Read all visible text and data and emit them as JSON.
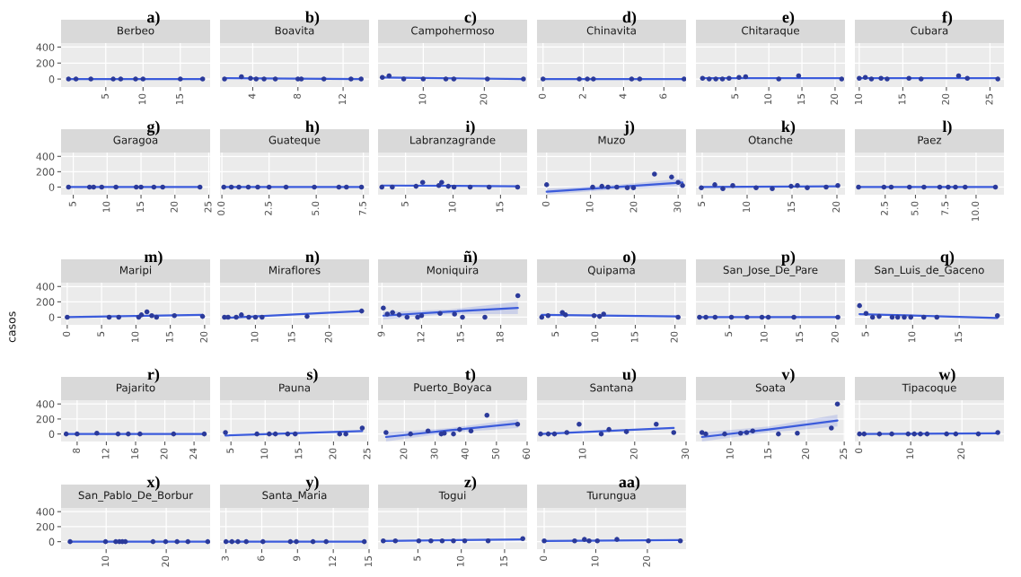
{
  "chart_data": [
    {
      "type": "scatter",
      "title": "Berbeo",
      "annotations": [
        "a)"
      ],
      "xlim": [
        -1,
        19
      ],
      "xticks": [
        5,
        10,
        15
      ],
      "ylim": [
        -100,
        450
      ],
      "yticks": [
        0,
        200,
        400
      ],
      "grid": true,
      "series": [
        {
          "marker": "circle",
          "color": "#2b3a9a",
          "x": [
            0,
            1,
            3,
            6,
            7,
            9,
            10,
            15,
            18
          ],
          "values": [
            0,
            0,
            0,
            0,
            0,
            0,
            0,
            0,
            0
          ]
        },
        {
          "type": "line",
          "color": "#3b5bdb",
          "x": [
            0,
            18
          ],
          "values": [
            0,
            0
          ]
        }
      ]
    },
    {
      "type": "scatter",
      "title": "Boavita",
      "annotations": [
        "b)"
      ],
      "xlim": [
        1.1,
        14.3
      ],
      "xticks": [
        4,
        8,
        12
      ],
      "ylim": [
        -100,
        450
      ],
      "yticks": [
        0,
        200,
        400
      ],
      "grid": true,
      "tick_labels": "x",
      "series": [
        {
          "marker": "circle",
          "color": "#2b3a9a",
          "x": [
            1.5,
            3,
            3.8,
            4.3,
            5,
            6,
            8,
            8.3,
            10.3,
            12.7,
            13.6
          ],
          "values": [
            0,
            30,
            10,
            0,
            0,
            0,
            0,
            0,
            0,
            0,
            0
          ]
        },
        {
          "type": "line",
          "color": "#3b5bdb",
          "x": [
            1.5,
            13.6
          ],
          "values": [
            10,
            0
          ]
        }
      ]
    },
    {
      "type": "scatter",
      "title": "Campohermoso",
      "annotations": [
        "c)"
      ],
      "xlim": [
        2.6,
        27
      ],
      "xticks": [
        10,
        20
      ],
      "ylim": [
        -100,
        450
      ],
      "yticks": [
        0,
        200,
        400
      ],
      "grid": true,
      "tick_labels": "x",
      "series": [
        {
          "marker": "circle",
          "color": "#2b3a9a",
          "x": [
            3.3,
            4.4,
            6.8,
            10,
            13.7,
            15,
            20.5,
            26.4
          ],
          "values": [
            20,
            40,
            0,
            0,
            0,
            0,
            0,
            0
          ]
        },
        {
          "type": "line",
          "color": "#3b5bdb",
          "x": [
            3.3,
            26.4
          ],
          "values": [
            20,
            0
          ]
        }
      ]
    },
    {
      "type": "scatter",
      "title": "Chinavita",
      "annotations": [
        "d)"
      ],
      "xlim": [
        -0.3,
        7.1
      ],
      "xticks": [
        0,
        2,
        4,
        6
      ],
      "ylim": [
        -100,
        450
      ],
      "yticks": [
        0,
        200,
        400
      ],
      "grid": true,
      "tick_labels": "x",
      "series": [
        {
          "marker": "circle",
          "color": "#2b3a9a",
          "x": [
            0,
            1.8,
            2.2,
            2.5,
            4.4,
            4.8,
            7
          ],
          "values": [
            0,
            0,
            0,
            0,
            0,
            0,
            0
          ]
        },
        {
          "type": "line",
          "color": "#3b5bdb",
          "x": [
            0,
            7
          ],
          "values": [
            0,
            0
          ]
        }
      ]
    },
    {
      "type": "scatter",
      "title": "Chitaraque",
      "annotations": [
        "e)"
      ],
      "xlim": [
        -1,
        21.5
      ],
      "xticks": [
        5,
        10,
        15,
        20
      ],
      "ylim": [
        -100,
        450
      ],
      "yticks": [
        0,
        200,
        400
      ],
      "grid": true,
      "tick_labels": "x",
      "series": [
        {
          "marker": "circle",
          "color": "#2b3a9a",
          "x": [
            0,
            1,
            2,
            3,
            4,
            5.5,
            6.5,
            11.5,
            14.5,
            21
          ],
          "values": [
            10,
            0,
            0,
            0,
            10,
            20,
            30,
            0,
            40,
            0
          ]
        },
        {
          "type": "line",
          "color": "#3b5bdb",
          "x": [
            0,
            21
          ],
          "values": [
            10,
            10
          ]
        }
      ]
    },
    {
      "type": "scatter",
      "title": "Cubara",
      "annotations": [
        "f)"
      ],
      "xlim": [
        9.5,
        26.6
      ],
      "xticks": [
        10,
        15,
        20,
        25
      ],
      "ylim": [
        -100,
        450
      ],
      "yticks": [
        0,
        200,
        400
      ],
      "grid": true,
      "tick_labels": "x",
      "series": [
        {
          "marker": "circle",
          "color": "#2b3a9a",
          "x": [
            10,
            10.7,
            11.4,
            12.5,
            13.2,
            15.7,
            17.1,
            21.4,
            22.4,
            25.9
          ],
          "values": [
            10,
            20,
            0,
            10,
            0,
            10,
            0,
            40,
            10,
            0
          ]
        },
        {
          "type": "line",
          "color": "#3b5bdb",
          "x": [
            10,
            25.9
          ],
          "values": [
            10,
            10
          ]
        }
      ]
    },
    {
      "type": "scatter",
      "title": "Garagoa",
      "annotations": [
        "g)"
      ],
      "xlim": [
        3.2,
        25.2
      ],
      "xticks": [
        5,
        10,
        15,
        20,
        25
      ],
      "ylim": [
        -100,
        450
      ],
      "yticks": [
        0,
        200,
        400
      ],
      "grid": true,
      "series": [
        {
          "marker": "circle",
          "color": "#2b3a9a",
          "x": [
            4.3,
            7.4,
            8,
            9.2,
            11.3,
            14.3,
            15,
            16.9,
            18.2,
            23.7
          ],
          "values": [
            0,
            0,
            0,
            0,
            0,
            0,
            0,
            0,
            0,
            0
          ]
        },
        {
          "type": "line",
          "color": "#3b5bdb",
          "x": [
            4.3,
            23.7
          ],
          "values": [
            0,
            0
          ]
        }
      ]
    },
    {
      "type": "scatter",
      "title": "Guateque",
      "annotations": [
        "h)"
      ],
      "xlim": [
        -0.1,
        7.8
      ],
      "xticks": [
        {
          "value": 0,
          "label": "0.0"
        },
        {
          "value": 2.5,
          "label": "2.5"
        },
        {
          "value": 5,
          "label": "5.0"
        },
        {
          "value": 7.5,
          "label": "7.5"
        }
      ],
      "ylim": [
        -100,
        450
      ],
      "yticks": [
        0,
        200,
        400
      ],
      "grid": true,
      "tick_labels": "x",
      "series": [
        {
          "marker": "circle",
          "color": "#2b3a9a",
          "x": [
            0.1,
            0.5,
            0.9,
            1.4,
            1.9,
            2.5,
            3.4,
            4.9,
            6.2,
            6.6,
            7.4
          ],
          "values": [
            0,
            0,
            0,
            0,
            0,
            0,
            0,
            0,
            0,
            0,
            0
          ]
        },
        {
          "type": "line",
          "color": "#3b5bdb",
          "x": [
            0.1,
            7.4
          ],
          "values": [
            0,
            0
          ]
        }
      ]
    },
    {
      "type": "scatter",
      "title": "Labranzagrande",
      "annotations": [
        "i)"
      ],
      "xlim": [
        2.1,
        17.8
      ],
      "xticks": [
        5,
        10,
        15
      ],
      "ylim": [
        -100,
        450
      ],
      "yticks": [
        0,
        200,
        400
      ],
      "grid": true,
      "tick_labels": "x",
      "series": [
        {
          "marker": "circle",
          "color": "#2b3a9a",
          "x": [
            2.5,
            3.6,
            6.1,
            6.8,
            8.5,
            8.8,
            9.5,
            10.1,
            11.8,
            13.8,
            16.8
          ],
          "values": [
            0,
            0,
            10,
            60,
            20,
            60,
            10,
            0,
            0,
            0,
            0
          ]
        },
        {
          "type": "line",
          "color": "#3b5bdb",
          "x": [
            2.5,
            16.8
          ],
          "values": [
            20,
            10
          ]
        }
      ]
    },
    {
      "type": "scatter",
      "title": "Muzo",
      "annotations": [
        "j)"
      ],
      "xlim": [
        -2.2,
        31.8
      ],
      "xticks": [
        0,
        10,
        20,
        30
      ],
      "ylim": [
        -100,
        450
      ],
      "yticks": [
        0,
        200,
        400
      ],
      "grid": true,
      "tick_labels": "x",
      "series": [
        {
          "marker": "circle",
          "color": "#2b3a9a",
          "x": [
            0,
            10.5,
            12.6,
            14,
            16,
            18.4,
            19.8,
            24.6,
            28.5,
            30,
            31
          ],
          "values": [
            30,
            0,
            10,
            0,
            0,
            -10,
            -10,
            170,
            130,
            60,
            20
          ]
        },
        {
          "type": "line",
          "color": "#3b5bdb",
          "x": [
            0,
            16,
            31
          ],
          "values": [
            -60,
            0,
            60
          ],
          "lower": [
            -100,
            -30,
            10
          ],
          "upper": [
            -20,
            30,
            110
          ]
        }
      ]
    },
    {
      "type": "scatter",
      "title": "Otanche",
      "annotations": [
        "k)"
      ],
      "xlim": [
        4.3,
        20.9
      ],
      "xticks": [
        5,
        10,
        15,
        20
      ],
      "ylim": [
        -100,
        450
      ],
      "yticks": [
        0,
        200,
        400
      ],
      "grid": true,
      "tick_labels": "x",
      "series": [
        {
          "marker": "circle",
          "color": "#2b3a9a",
          "x": [
            4.9,
            6.4,
            7.3,
            8.4,
            11,
            12.8,
            14.9,
            15.6,
            16.7,
            18.8,
            20.1
          ],
          "values": [
            -10,
            30,
            -20,
            20,
            -10,
            -20,
            10,
            20,
            -10,
            0,
            20
          ]
        },
        {
          "type": "line",
          "color": "#3b5bdb",
          "x": [
            4.9,
            20.1
          ],
          "values": [
            0,
            10
          ]
        }
      ]
    },
    {
      "type": "scatter",
      "title": "Paez",
      "annotations": [
        "l)"
      ],
      "xlim": [
        0,
        12.3
      ],
      "xticks": [
        {
          "value": 2.5,
          "label": "2.5"
        },
        {
          "value": 5,
          "label": "5.0"
        },
        {
          "value": 7.5,
          "label": "7.5"
        },
        {
          "value": 10,
          "label": "10.0"
        }
      ],
      "ylim": [
        -100,
        450
      ],
      "yticks": [
        0,
        200,
        400
      ],
      "grid": true,
      "tick_labels": "x",
      "series": [
        {
          "marker": "circle",
          "color": "#2b3a9a",
          "x": [
            0.3,
            2.4,
            3,
            4.5,
            5.7,
            7,
            7.7,
            8.3,
            9.1,
            11.6
          ],
          "values": [
            0,
            0,
            0,
            0,
            0,
            0,
            0,
            0,
            0,
            0
          ]
        },
        {
          "type": "line",
          "color": "#3b5bdb",
          "x": [
            0.3,
            11.6
          ],
          "values": [
            0,
            0
          ]
        }
      ]
    },
    {
      "type": "scatter",
      "title": "Maripi",
      "annotations": [
        "m)"
      ],
      "ylabel": "casos",
      "xlim": [
        -0.9,
        20.8
      ],
      "xticks": [
        0,
        5,
        10,
        15,
        20
      ],
      "ylim": [
        -100,
        450
      ],
      "yticks": [
        0,
        200,
        400
      ],
      "grid": true,
      "series": [
        {
          "marker": "circle",
          "color": "#2b3a9a",
          "x": [
            0,
            6.1,
            7.5,
            10.4,
            10.8,
            11.6,
            12.3,
            13,
            15.6,
            19.7
          ],
          "values": [
            0,
            0,
            0,
            0,
            30,
            70,
            20,
            0,
            20,
            10
          ]
        },
        {
          "type": "line",
          "color": "#3b5bdb",
          "x": [
            0,
            19.7
          ],
          "values": [
            0,
            30
          ]
        }
      ]
    },
    {
      "type": "scatter",
      "title": "Miraflores",
      "annotations": [
        "n)"
      ],
      "xlim": [
        5.2,
        25.4
      ],
      "xticks": [
        10,
        15,
        20
      ],
      "ylim": [
        -100,
        450
      ],
      "yticks": [
        0,
        200,
        400
      ],
      "grid": true,
      "tick_labels": "x",
      "series": [
        {
          "marker": "circle",
          "color": "#2b3a9a",
          "x": [
            5.8,
            6.3,
            7.4,
            8.1,
            9.1,
            10,
            10.9,
            17,
            24.4
          ],
          "values": [
            0,
            0,
            0,
            30,
            0,
            0,
            0,
            10,
            80
          ]
        },
        {
          "type": "line",
          "color": "#3b5bdb",
          "x": [
            5.8,
            24.4
          ],
          "values": [
            -10,
            80
          ]
        }
      ]
    },
    {
      "type": "scatter",
      "title": "Moniquira",
      "annotations": [
        "ñ)"
      ],
      "xlim": [
        8.7,
        20
      ],
      "xticks": [
        9,
        12,
        15,
        18
      ],
      "ylim": [
        -100,
        450
      ],
      "yticks": [
        0,
        200,
        400
      ],
      "grid": true,
      "tick_labels": "x",
      "series": [
        {
          "marker": "circle",
          "color": "#2b3a9a",
          "x": [
            9.1,
            9.4,
            9.8,
            10.3,
            10.9,
            11.7,
            12,
            13.4,
            14.5,
            15.1,
            16.8,
            19.3
          ],
          "values": [
            120,
            40,
            60,
            30,
            0,
            0,
            20,
            50,
            40,
            0,
            0,
            280
          ]
        },
        {
          "type": "line",
          "color": "#3b5bdb",
          "x": [
            9.1,
            14,
            19.3
          ],
          "values": [
            20,
            70,
            120
          ],
          "lower": [
            -30,
            40,
            40
          ],
          "upper": [
            70,
            100,
            200
          ]
        }
      ]
    },
    {
      "type": "scatter",
      "title": "Quipama",
      "annotations": [
        "o)"
      ],
      "xlim": [
        2.6,
        21.4
      ],
      "xticks": [
        5,
        10,
        15,
        20
      ],
      "ylim": [
        -100,
        450
      ],
      "yticks": [
        0,
        200,
        400
      ],
      "grid": true,
      "tick_labels": "x",
      "series": [
        {
          "marker": "circle",
          "color": "#2b3a9a",
          "x": [
            3.2,
            4,
            5.8,
            6.2,
            9.8,
            10.5,
            11,
            20.4
          ],
          "values": [
            0,
            20,
            60,
            30,
            20,
            10,
            40,
            0
          ]
        },
        {
          "type": "line",
          "color": "#3b5bdb",
          "x": [
            3.2,
            20.4
          ],
          "values": [
            30,
            10
          ]
        }
      ]
    },
    {
      "type": "scatter",
      "title": "San_Jose_De_Pare",
      "annotations": [
        "p)"
      ],
      "xlim": [
        0.3,
        21.3
      ],
      "xticks": [
        5,
        10,
        15,
        20
      ],
      "ylim": [
        -100,
        450
      ],
      "yticks": [
        0,
        200,
        400
      ],
      "grid": true,
      "tick_labels": "x",
      "series": [
        {
          "marker": "circle",
          "color": "#2b3a9a",
          "x": [
            0.8,
            1.7,
            3,
            5.3,
            7.5,
            9.6,
            10.5,
            14.1,
            20.3
          ],
          "values": [
            0,
            0,
            0,
            0,
            0,
            0,
            0,
            0,
            0
          ]
        },
        {
          "type": "line",
          "color": "#3b5bdb",
          "x": [
            0.8,
            20.3
          ],
          "values": [
            0,
            0
          ]
        }
      ]
    },
    {
      "type": "scatter",
      "title": "San_Luis_de_Gaceno",
      "annotations": [
        "q)"
      ],
      "xlim": [
        3.8,
        19.8
      ],
      "xticks": [
        5,
        10,
        15
      ],
      "ylim": [
        -100,
        450
      ],
      "yticks": [
        0,
        200,
        400
      ],
      "grid": true,
      "tick_labels": "x",
      "series": [
        {
          "marker": "circle",
          "color": "#2b3a9a",
          "x": [
            4.3,
            5,
            5.7,
            6.4,
            7.8,
            8.4,
            9.1,
            9.8,
            11.2,
            12.6,
            19.1
          ],
          "values": [
            150,
            50,
            0,
            10,
            0,
            0,
            0,
            0,
            0,
            0,
            20
          ]
        },
        {
          "type": "line",
          "color": "#3b5bdb",
          "x": [
            4.3,
            19.1
          ],
          "values": [
            40,
            -10
          ]
        }
      ]
    },
    {
      "type": "scatter",
      "title": "Pajarito",
      "annotations": [
        "r)"
      ],
      "xlim": [
        5.8,
        26.2
      ],
      "xticks": [
        8,
        12,
        16,
        20,
        24
      ],
      "ylim": [
        -100,
        450
      ],
      "yticks": [
        0,
        200,
        400
      ],
      "grid": true,
      "series": [
        {
          "marker": "circle",
          "color": "#2b3a9a",
          "x": [
            6.5,
            8,
            10.7,
            13.6,
            15,
            16.6,
            21.2,
            25.4
          ],
          "values": [
            0,
            0,
            10,
            0,
            0,
            0,
            0,
            0
          ]
        },
        {
          "type": "line",
          "color": "#3b5bdb",
          "x": [
            6.5,
            25.4
          ],
          "values": [
            0,
            0
          ]
        }
      ]
    },
    {
      "type": "scatter",
      "title": "Pauna",
      "annotations": [
        "s)"
      ],
      "xlim": [
        3.4,
        25.2
      ],
      "xticks": [
        5,
        10,
        15,
        20,
        25
      ],
      "ylim": [
        -100,
        450
      ],
      "yticks": [
        0,
        200,
        400
      ],
      "grid": true,
      "tick_labels": "x",
      "series": [
        {
          "marker": "circle",
          "color": "#2b3a9a",
          "x": [
            4.2,
            8.8,
            10.6,
            11.5,
            13.3,
            14.4,
            20.9,
            21.8,
            24.2
          ],
          "values": [
            20,
            0,
            0,
            0,
            0,
            0,
            0,
            0,
            80
          ]
        },
        {
          "type": "line",
          "color": "#3b5bdb",
          "x": [
            4.2,
            24.2
          ],
          "values": [
            -20,
            40
          ]
        }
      ]
    },
    {
      "type": "scatter",
      "title": "Puerto_Boyaca",
      "annotations": [
        "t)"
      ],
      "xlim": [
        11.4,
        60
      ],
      "xticks": [
        20,
        30,
        40,
        50,
        60
      ],
      "ylim": [
        -100,
        450
      ],
      "yticks": [
        0,
        200,
        400
      ],
      "grid": true,
      "tick_labels": "x",
      "series": [
        {
          "marker": "circle",
          "color": "#2b3a9a",
          "x": [
            14,
            22,
            27.7,
            32,
            33,
            36,
            38,
            41.7,
            46.9,
            56.9
          ],
          "values": [
            20,
            0,
            40,
            0,
            10,
            0,
            60,
            40,
            250,
            130
          ]
        },
        {
          "type": "line",
          "color": "#3b5bdb",
          "x": [
            14,
            35,
            57
          ],
          "values": [
            -40,
            50,
            140
          ],
          "lower": [
            -100,
            20,
            80
          ],
          "upper": [
            20,
            80,
            200
          ]
        }
      ]
    },
    {
      "type": "scatter",
      "title": "Santana",
      "annotations": [
        "u)"
      ],
      "xlim": [
        1,
        30
      ],
      "xticks": [
        10,
        20,
        30
      ],
      "ylim": [
        -100,
        450
      ],
      "yticks": [
        0,
        200,
        400
      ],
      "grid": true,
      "tick_labels": "x",
      "series": [
        {
          "marker": "circle",
          "color": "#2b3a9a",
          "x": [
            1.7,
            3.2,
            4.4,
            6.8,
            9.2,
            13.5,
            15,
            18.4,
            24.2,
            27.6
          ],
          "values": [
            0,
            0,
            0,
            20,
            130,
            0,
            60,
            30,
            130,
            20
          ]
        },
        {
          "type": "line",
          "color": "#3b5bdb",
          "x": [
            1.7,
            27.6
          ],
          "values": [
            0,
            80
          ]
        }
      ]
    },
    {
      "type": "scatter",
      "title": "Soata",
      "annotations": [
        "v)"
      ],
      "xlim": [
        5.4,
        25.1
      ],
      "xticks": [
        10,
        15,
        20,
        25
      ],
      "ylim": [
        -100,
        450
      ],
      "yticks": [
        0,
        200,
        400
      ],
      "grid": true,
      "tick_labels": "x",
      "series": [
        {
          "marker": "circle",
          "color": "#2b3a9a",
          "x": [
            6.2,
            6.7,
            9.2,
            11.3,
            12.1,
            12.9,
            16.3,
            18.8,
            23.3,
            24.1
          ],
          "values": [
            20,
            0,
            0,
            10,
            20,
            40,
            0,
            10,
            80,
            400
          ]
        },
        {
          "type": "line",
          "color": "#3b5bdb",
          "x": [
            6.2,
            15,
            24.1
          ],
          "values": [
            -40,
            60,
            180
          ],
          "lower": [
            -100,
            20,
            100
          ],
          "upper": [
            20,
            100,
            260
          ]
        }
      ]
    },
    {
      "type": "scatter",
      "title": "Tipacoque",
      "annotations": [
        "w)"
      ],
      "xlim": [
        -0.9,
        28.2
      ],
      "xticks": [
        0,
        10,
        20
      ],
      "ylim": [
        -100,
        450
      ],
      "yticks": [
        0,
        200,
        400
      ],
      "grid": true,
      "tick_labels": "x",
      "series": [
        {
          "marker": "circle",
          "color": "#2b3a9a",
          "x": [
            0,
            0.9,
            3.9,
            6.3,
            9.5,
            10.7,
            11.9,
            13.2,
            17,
            18.8,
            23.2,
            27
          ],
          "values": [
            0,
            0,
            0,
            0,
            0,
            0,
            0,
            0,
            0,
            0,
            0,
            20
          ]
        },
        {
          "type": "line",
          "color": "#3b5bdb",
          "x": [
            0,
            27
          ],
          "values": [
            0,
            10
          ]
        }
      ]
    },
    {
      "type": "scatter",
      "title": "San_Pablo_De_Borbur",
      "annotations": [
        "x)"
      ],
      "xlim": [
        2.5,
        27.3
      ],
      "xticks": [
        10,
        20
      ],
      "ylim": [
        -100,
        450
      ],
      "yticks": [
        0,
        200,
        400
      ],
      "grid": true,
      "series": [
        {
          "marker": "circle",
          "color": "#2b3a9a",
          "x": [
            4,
            9.9,
            11.6,
            12.2,
            12.7,
            13.2,
            17.8,
            19.9,
            21.8,
            23.6,
            26.9
          ],
          "values": [
            0,
            0,
            0,
            0,
            0,
            0,
            0,
            0,
            0,
            0,
            0
          ]
        },
        {
          "type": "line",
          "color": "#3b5bdb",
          "x": [
            4,
            26.9
          ],
          "values": [
            0,
            0
          ]
        }
      ]
    },
    {
      "type": "scatter",
      "title": "Santa_Maria",
      "annotations": [
        "y)"
      ],
      "xlim": [
        2.5,
        15
      ],
      "xticks": [
        3,
        6,
        9,
        12,
        15
      ],
      "ylim": [
        -100,
        450
      ],
      "yticks": [
        0,
        200,
        400
      ],
      "grid": true,
      "tick_labels": "x",
      "series": [
        {
          "marker": "circle",
          "color": "#2b3a9a",
          "x": [
            3,
            3.5,
            4,
            4.7,
            6.1,
            8.4,
            8.9,
            10.3,
            11.4,
            14.6
          ],
          "values": [
            0,
            0,
            0,
            0,
            0,
            0,
            0,
            0,
            0,
            0
          ]
        },
        {
          "type": "line",
          "color": "#3b5bdb",
          "x": [
            3,
            14.6
          ],
          "values": [
            0,
            0
          ]
        }
      ]
    },
    {
      "type": "scatter",
      "title": "Togui",
      "annotations": [
        "z)"
      ],
      "xlim": [
        0.4,
        17.6
      ],
      "xticks": [
        5,
        10,
        15
      ],
      "ylim": [
        -100,
        450
      ],
      "yticks": [
        0,
        200,
        400
      ],
      "grid": true,
      "tick_labels": "x",
      "series": [
        {
          "marker": "circle",
          "color": "#2b3a9a",
          "x": [
            1,
            2.4,
            5.1,
            6.5,
            7.8,
            9.1,
            10.4,
            13.1,
            17.1
          ],
          "values": [
            10,
            10,
            10,
            10,
            10,
            10,
            10,
            10,
            40
          ]
        },
        {
          "type": "line",
          "color": "#3b5bdb",
          "x": [
            1,
            17.1
          ],
          "values": [
            10,
            30
          ]
        }
      ]
    },
    {
      "type": "scatter",
      "title": "Turungua",
      "annotations": [
        "aa)"
      ],
      "xlim": [
        -1.4,
        27.5
      ],
      "xticks": [
        0,
        10,
        20
      ],
      "ylim": [
        -100,
        450
      ],
      "yticks": [
        0,
        200,
        400
      ],
      "grid": true,
      "tick_labels": "x",
      "series": [
        {
          "marker": "circle",
          "color": "#2b3a9a",
          "x": [
            0,
            5.9,
            7.8,
            8.7,
            10.3,
            14.1,
            20.2,
            26.4
          ],
          "values": [
            10,
            10,
            30,
            10,
            10,
            30,
            10,
            10
          ]
        },
        {
          "type": "line",
          "color": "#3b5bdb",
          "x": [
            0,
            26.4
          ],
          "values": [
            10,
            20
          ]
        }
      ]
    }
  ]
}
